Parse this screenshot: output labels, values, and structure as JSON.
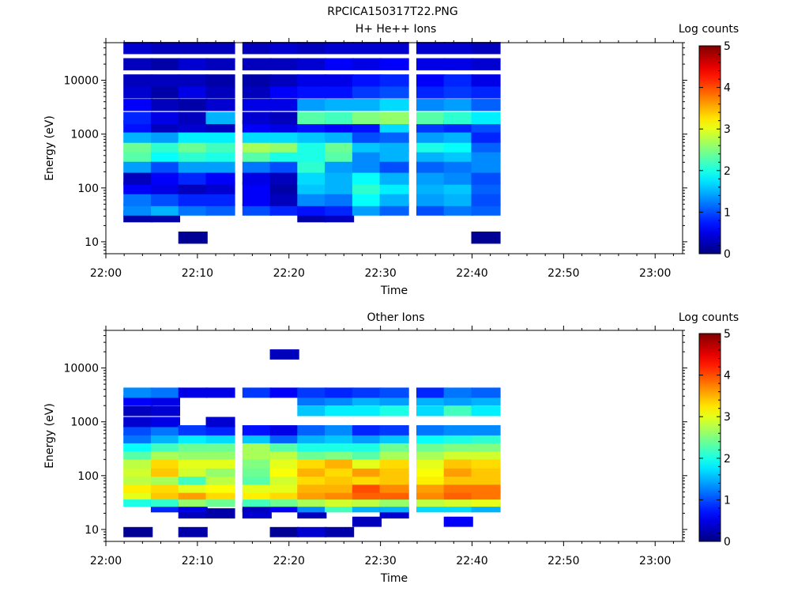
{
  "figure": {
    "title": "RPCICA150317T22.PNG"
  },
  "colorbar": {
    "label": "Log counts",
    "ticks": [
      "0",
      "1",
      "2",
      "3",
      "4",
      "5"
    ],
    "range": [
      0,
      5
    ],
    "colormap": "jet"
  },
  "chart_data": [
    {
      "type": "heatmap",
      "title": "H+ He++ Ions",
      "xlabel": "Time",
      "ylabel": "Energy (eV)",
      "x_ticks": [
        "22:00",
        "22:10",
        "22:20",
        "22:30",
        "22:40",
        "22:50",
        "23:00"
      ],
      "y_ticks": [
        "10",
        "100",
        "1000",
        "10000"
      ],
      "y_scale": "log",
      "y_range_eV": [
        6,
        50000
      ],
      "x_range": [
        "22:00",
        "23:03"
      ],
      "time_bins": [
        "22:02",
        "22:05",
        "22:08",
        "22:11",
        "22:15",
        "22:18",
        "22:21",
        "22:24",
        "22:27",
        "22:30",
        "22:34",
        "22:37",
        "22:40"
      ],
      "energy_bins_eV": [
        12,
        30,
        40,
        60,
        100,
        150,
        250,
        400,
        600,
        900,
        1400,
        2000,
        3500,
        6000,
        10000,
        20000,
        40000
      ],
      "log_counts": [
        [
          null,
          0.2,
          1.3,
          1.2,
          0.6,
          0.3,
          1.4,
          2.3,
          2.4,
          1.5,
          0.7,
          0.8,
          0.6,
          0.4,
          0.3,
          0.3,
          0.4
        ],
        [
          null,
          0.2,
          1.5,
          1.0,
          0.5,
          0.6,
          1.0,
          1.9,
          2.1,
          1.4,
          0.3,
          0.5,
          0.3,
          0.2,
          0.3,
          0.2,
          0.3
        ],
        [
          0.1,
          null,
          1.2,
          0.8,
          0.3,
          0.8,
          1.4,
          2.1,
          2.4,
          1.8,
          0.4,
          0.3,
          0.2,
          0.5,
          0.3,
          0.4,
          0.3
        ],
        [
          null,
          null,
          1.1,
          0.8,
          0.4,
          0.6,
          1.4,
          2.0,
          2.2,
          1.8,
          0.3,
          1.5,
          0.4,
          0.3,
          0.2,
          0.3,
          0.3
        ],
        [
          null,
          null,
          1.0,
          0.6,
          0.6,
          0.5,
          1.2,
          2.3,
          2.7,
          1.7,
          0.6,
          0.4,
          0.5,
          0.3,
          0.2,
          0.3,
          0.3
        ],
        [
          null,
          null,
          0.8,
          0.3,
          0.2,
          0.3,
          1.0,
          2.0,
          2.6,
          1.7,
          0.5,
          0.3,
          0.5,
          0.6,
          0.3,
          0.3,
          0.4
        ],
        [
          null,
          0.2,
          0.7,
          1.3,
          1.6,
          1.7,
          2.1,
          2.0,
          2.0,
          1.6,
          0.7,
          2.3,
          1.4,
          0.7,
          0.5,
          0.4,
          0.3
        ],
        [
          null,
          0.3,
          0.8,
          1.2,
          1.5,
          1.5,
          1.4,
          2.3,
          2.4,
          1.5,
          0.6,
          2.2,
          1.5,
          0.7,
          0.5,
          0.6,
          0.4
        ],
        [
          null,
          null,
          1.4,
          1.9,
          2.1,
          1.9,
          1.3,
          1.3,
          1.6,
          1.0,
          0.7,
          2.5,
          1.5,
          0.9,
          0.7,
          0.5,
          0.4
        ],
        [
          null,
          null,
          1.1,
          1.5,
          1.8,
          1.5,
          1.0,
          1.5,
          1.5,
          1.1,
          1.7,
          2.6,
          1.7,
          1.0,
          0.8,
          0.6,
          0.4
        ],
        [
          null,
          null,
          1.0,
          1.4,
          1.5,
          1.4,
          1.1,
          1.5,
          2.0,
          1.4,
          0.9,
          2.3,
          1.3,
          0.8,
          0.6,
          0.5,
          0.4
        ],
        [
          null,
          null,
          1.2,
          1.5,
          1.6,
          1.3,
          1.2,
          1.6,
          1.9,
          1.5,
          0.8,
          2.1,
          1.4,
          0.9,
          0.8,
          0.5,
          0.4
        ],
        [
          0.1,
          null,
          1.1,
          1.0,
          1.1,
          1.0,
          1.3,
          1.3,
          1.1,
          0.8,
          1.0,
          1.8,
          1.1,
          0.8,
          0.5,
          0.4,
          0.3
        ]
      ]
    },
    {
      "type": "heatmap",
      "title": "Other Ions",
      "xlabel": "Time",
      "ylabel": "Energy (eV)",
      "x_ticks": [
        "22:00",
        "22:10",
        "22:20",
        "22:30",
        "22:40",
        "22:50",
        "23:00"
      ],
      "y_ticks": [
        "10",
        "100",
        "1000",
        "10000"
      ],
      "y_scale": "log",
      "y_range_eV": [
        6,
        50000
      ],
      "x_range": [
        "22:00",
        "23:03"
      ],
      "time_bins": [
        "22:02",
        "22:05",
        "22:08",
        "22:11",
        "22:15",
        "22:18",
        "22:21",
        "22:24",
        "22:27",
        "22:30",
        "22:34",
        "22:37",
        "22:40"
      ],
      "energy_bins_eV": [
        9,
        14,
        20,
        26,
        33,
        45,
        60,
        85,
        120,
        170,
        250,
        350,
        500,
        700,
        1000,
        1600,
        2500,
        3500,
        18000
      ],
      "log_counts": [
        [
          0.1,
          null,
          null,
          null,
          2.0,
          3.0,
          3.2,
          2.8,
          2.9,
          2.8,
          2.3,
          1.9,
          1.2,
          1.0,
          0.4,
          0.3,
          0.6,
          1.3,
          null
        ],
        [
          null,
          null,
          null,
          0.8,
          2.1,
          3.4,
          3.3,
          2.7,
          3.4,
          3.3,
          2.7,
          2.2,
          1.5,
          1.2,
          0.5,
          0.4,
          0.5,
          1.2,
          null
        ],
        [
          0.2,
          null,
          0.3,
          0.5,
          2.6,
          3.6,
          3.0,
          2.2,
          2.9,
          3.0,
          2.6,
          2.4,
          1.8,
          0.9,
          null,
          null,
          null,
          0.5,
          null
        ],
        [
          null,
          null,
          0.2,
          null,
          2.4,
          3.3,
          3.1,
          2.8,
          2.6,
          3.0,
          2.6,
          2.4,
          1.7,
          0.8,
          0.4,
          null,
          null,
          0.5,
          null
        ],
        [
          null,
          null,
          0.4,
          0.3,
          2.2,
          3.2,
          3.0,
          2.3,
          2.4,
          2.5,
          2.7,
          2.7,
          1.6,
          0.7,
          null,
          null,
          null,
          0.9,
          null
        ],
        [
          0.1,
          null,
          null,
          0.6,
          2.4,
          3.3,
          3.0,
          2.9,
          3.1,
          3.0,
          2.8,
          2.3,
          1.1,
          0.5,
          null,
          null,
          null,
          0.6,
          0.3
        ],
        [
          0.4,
          null,
          0.3,
          1.3,
          2.7,
          3.6,
          3.5,
          3.3,
          3.5,
          3.3,
          2.4,
          2.0,
          1.5,
          1.1,
          null,
          1.6,
          1.2,
          0.9,
          null
        ],
        [
          0.2,
          null,
          null,
          2.2,
          2.9,
          3.7,
          3.5,
          3.4,
          3.3,
          3.5,
          2.5,
          2.0,
          1.6,
          1.3,
          null,
          1.8,
          1.3,
          0.8,
          null
        ],
        [
          null,
          0.3,
          null,
          1.5,
          2.8,
          3.9,
          4.0,
          3.3,
          3.6,
          3.0,
          2.3,
          2.0,
          1.4,
          0.8,
          null,
          1.8,
          1.5,
          0.9,
          null
        ],
        [
          null,
          null,
          0.4,
          1.5,
          2.6,
          3.9,
          3.7,
          3.4,
          3.4,
          3.3,
          2.7,
          2.4,
          1.6,
          0.9,
          null,
          2.0,
          1.4,
          1.0,
          null
        ],
        [
          null,
          null,
          null,
          1.7,
          2.8,
          3.7,
          3.6,
          3.2,
          3.1,
          3.0,
          2.7,
          2.4,
          1.9,
          1.2,
          null,
          1.7,
          1.5,
          0.8,
          null
        ],
        [
          null,
          0.6,
          null,
          1.7,
          2.9,
          3.9,
          3.8,
          3.4,
          3.6,
          3.4,
          2.9,
          2.5,
          2.0,
          1.3,
          null,
          2.2,
          1.4,
          1.2,
          null
        ],
        [
          null,
          null,
          null,
          1.5,
          3.0,
          3.8,
          3.8,
          3.4,
          3.4,
          3.3,
          2.9,
          2.5,
          2.1,
          1.3,
          null,
          1.8,
          1.5,
          1.1,
          null
        ]
      ]
    }
  ]
}
